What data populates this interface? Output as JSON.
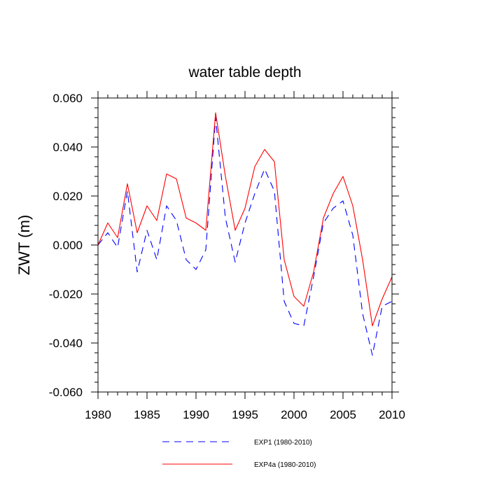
{
  "chart_data": {
    "type": "line",
    "title": "water table depth",
    "xlabel": "",
    "ylabel": "ZWT  (m)",
    "xlim": [
      1980,
      2010
    ],
    "ylim": [
      -0.06,
      0.06
    ],
    "x_ticks": [
      1980,
      1985,
      1990,
      1995,
      2000,
      2005,
      2010
    ],
    "x_tick_labels": [
      "1980",
      "1985",
      "1990",
      "1995",
      "2000",
      "2005",
      "2010"
    ],
    "y_ticks": [
      0.06,
      0.04,
      0.02,
      0.0,
      -0.02,
      -0.04,
      -0.06
    ],
    "y_tick_labels": [
      "0.060",
      "0.040",
      "0.020",
      "0.000",
      "-0.020",
      "-0.040",
      "-0.060"
    ],
    "grid": false,
    "legend_position": "bottom-center",
    "x": [
      1980,
      1981,
      1982,
      1983,
      1984,
      1985,
      1986,
      1987,
      1988,
      1989,
      1990,
      1991,
      1992,
      1993,
      1994,
      1995,
      1996,
      1997,
      1998,
      1999,
      2000,
      2001,
      2002,
      2003,
      2004,
      2005,
      2006,
      2007,
      2008,
      2009,
      2010
    ],
    "series": [
      {
        "name": "EXP1 (1980-2010)",
        "color": "#0000ff",
        "style": "dashed",
        "values": [
          0.0,
          0.005,
          -0.001,
          0.022,
          -0.011,
          0.006,
          -0.006,
          0.016,
          0.01,
          -0.006,
          -0.01,
          -0.002,
          0.052,
          0.011,
          -0.007,
          0.009,
          0.021,
          0.031,
          0.022,
          -0.023,
          -0.032,
          -0.033,
          -0.013,
          0.009,
          0.015,
          0.018,
          0.004,
          -0.028,
          -0.045,
          -0.025,
          -0.023
        ]
      },
      {
        "name": "EXP4a (1980-2010)",
        "color": "#ff0000",
        "style": "solid",
        "values": [
          0.0,
          0.009,
          0.003,
          0.025,
          0.005,
          0.016,
          0.01,
          0.029,
          0.027,
          0.011,
          0.009,
          0.006,
          0.054,
          0.028,
          0.006,
          0.015,
          0.032,
          0.039,
          0.034,
          -0.006,
          -0.021,
          -0.025,
          -0.011,
          0.011,
          0.021,
          0.028,
          0.016,
          -0.006,
          -0.033,
          -0.022,
          -0.013
        ]
      }
    ]
  }
}
